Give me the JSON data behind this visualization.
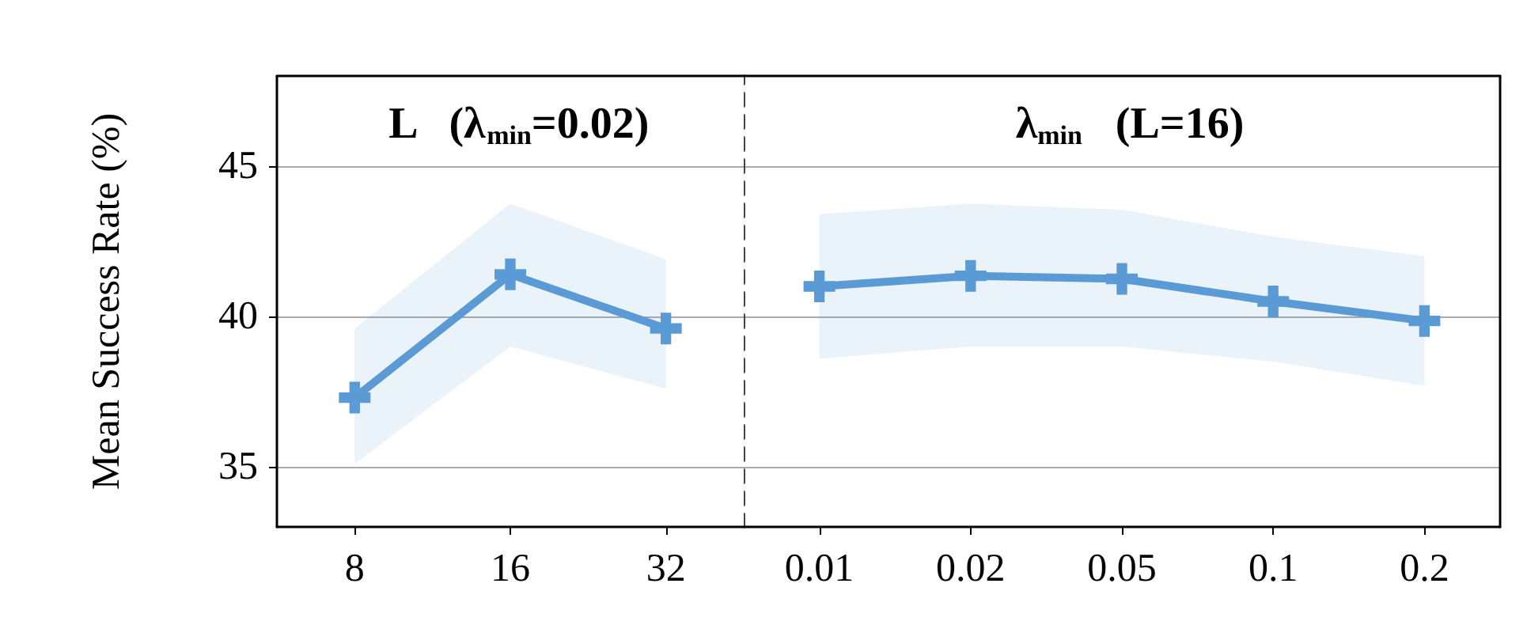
{
  "chart_data": [
    {
      "type": "line",
      "title": "L   (λ$_{min}$=0.02)",
      "ylabel": "Mean Success Rate (%)",
      "categories": [
        "8",
        "16",
        "32"
      ],
      "ylim": [
        33,
        48
      ],
      "yticks": [
        35,
        40,
        45
      ],
      "grid": "y",
      "marker": "cross",
      "line_style": "solid",
      "series": [
        {
          "color": "#5b9bd5",
          "values": [
            37.3,
            41.4,
            39.6
          ],
          "lower": [
            35.1,
            39.0,
            37.6
          ],
          "upper": [
            39.6,
            43.75,
            41.9
          ]
        }
      ]
    },
    {
      "type": "line",
      "title": "λ$_{min}$   (L=16)",
      "categories": [
        "0.01",
        "0.02",
        "0.05",
        "0.1",
        "0.2"
      ],
      "ylim": [
        33,
        48
      ],
      "yticks": [
        35,
        40,
        45
      ],
      "grid": "y",
      "marker": "cross",
      "line_style": "solid",
      "tick_labels": "x",
      "series": [
        {
          "color": "#5b9bd5",
          "values": [
            41.0,
            41.35,
            41.25,
            40.5,
            39.85
          ],
          "lower": [
            38.6,
            39.0,
            39.0,
            38.5,
            37.7
          ],
          "upper": [
            43.4,
            43.75,
            43.55,
            42.65,
            42.0
          ]
        }
      ]
    }
  ]
}
